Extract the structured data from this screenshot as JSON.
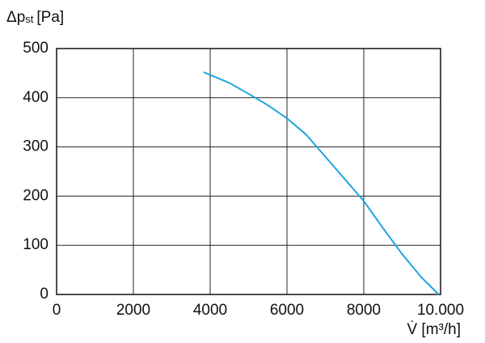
{
  "chart_data": {
    "type": "line",
    "y_label": {
      "symbol": "Δp",
      "subscript": "st",
      "unit": "[Pa]"
    },
    "x_label": "V̇ [m³/h]",
    "x": [
      3830,
      4500,
      5000,
      5500,
      6000,
      6500,
      7000,
      7500,
      8000,
      8500,
      9000,
      9500,
      9950
    ],
    "values": [
      452,
      430,
      408,
      385,
      358,
      325,
      280,
      235,
      190,
      135,
      82,
      35,
      0
    ],
    "color": "#1ea4e0",
    "xlim": [
      0,
      10000
    ],
    "ylim": [
      0,
      500
    ],
    "xticks": [
      0,
      2000,
      4000,
      6000,
      8000,
      {
        "value": 10000,
        "label": "10.000"
      }
    ],
    "yticks": [
      0,
      100,
      200,
      300,
      400,
      500
    ],
    "grid": true
  }
}
